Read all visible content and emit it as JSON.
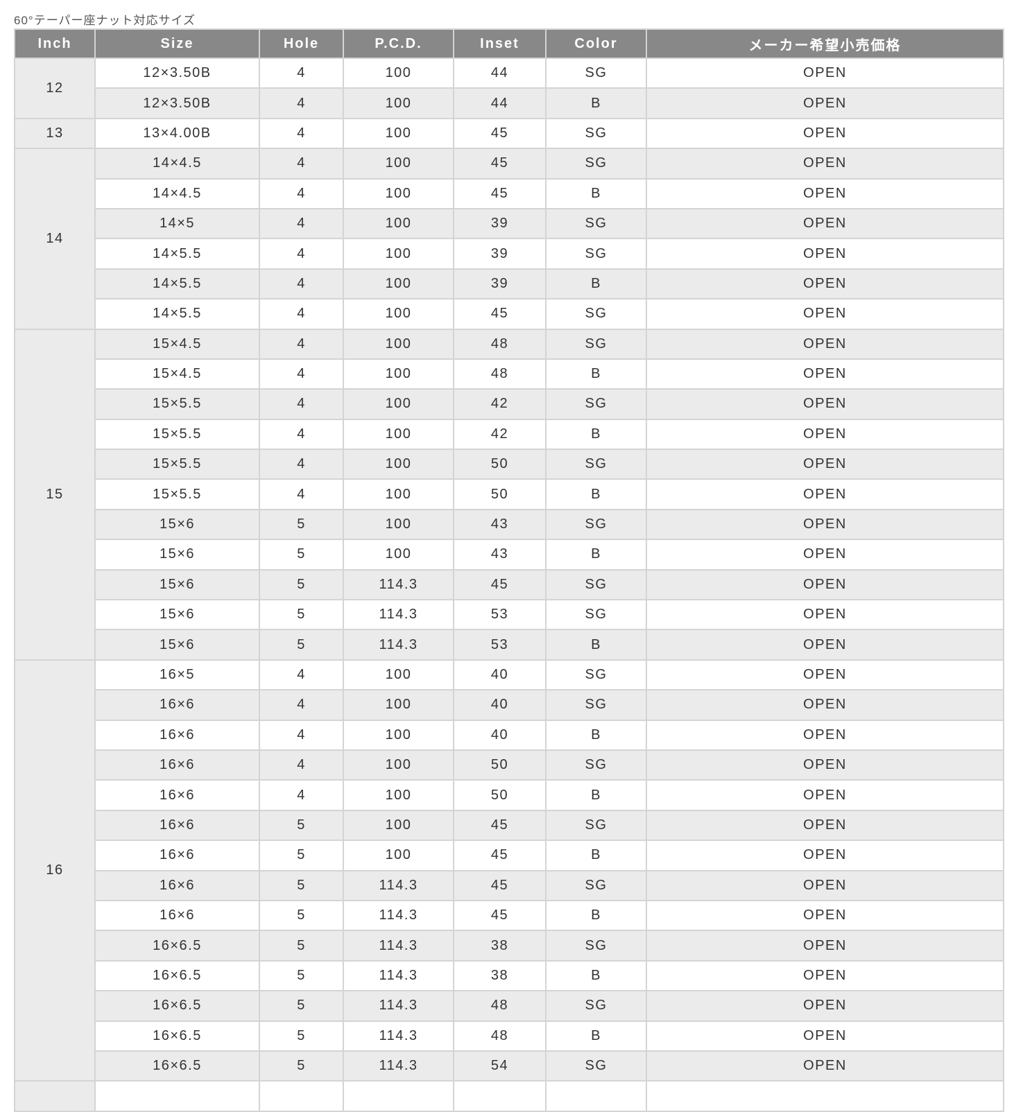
{
  "caption": "60°テーパー座ナット対応サイズ",
  "headers": [
    "Inch",
    "Size",
    "Hole",
    "P.C.D.",
    "Inset",
    "Color",
    "メーカー希望小売価格"
  ],
  "groups": [
    {
      "inch": "12",
      "rows": [
        [
          "12×3.50B",
          "4",
          "100",
          "44",
          "SG",
          "OPEN"
        ],
        [
          "12×3.50B",
          "4",
          "100",
          "44",
          "B",
          "OPEN"
        ]
      ]
    },
    {
      "inch": "13",
      "rows": [
        [
          "13×4.00B",
          "4",
          "100",
          "45",
          "SG",
          "OPEN"
        ]
      ]
    },
    {
      "inch": "14",
      "rows": [
        [
          "14×4.5",
          "4",
          "100",
          "45",
          "SG",
          "OPEN"
        ],
        [
          "14×4.5",
          "4",
          "100",
          "45",
          "B",
          "OPEN"
        ],
        [
          "14×5",
          "4",
          "100",
          "39",
          "SG",
          "OPEN"
        ],
        [
          "14×5.5",
          "4",
          "100",
          "39",
          "SG",
          "OPEN"
        ],
        [
          "14×5.5",
          "4",
          "100",
          "39",
          "B",
          "OPEN"
        ],
        [
          "14×5.5",
          "4",
          "100",
          "45",
          "SG",
          "OPEN"
        ]
      ]
    },
    {
      "inch": "15",
      "rows": [
        [
          "15×4.5",
          "4",
          "100",
          "48",
          "SG",
          "OPEN"
        ],
        [
          "15×4.5",
          "4",
          "100",
          "48",
          "B",
          "OPEN"
        ],
        [
          "15×5.5",
          "4",
          "100",
          "42",
          "SG",
          "OPEN"
        ],
        [
          "15×5.5",
          "4",
          "100",
          "42",
          "B",
          "OPEN"
        ],
        [
          "15×5.5",
          "4",
          "100",
          "50",
          "SG",
          "OPEN"
        ],
        [
          "15×5.5",
          "4",
          "100",
          "50",
          "B",
          "OPEN"
        ],
        [
          "15×6",
          "5",
          "100",
          "43",
          "SG",
          "OPEN"
        ],
        [
          "15×6",
          "5",
          "100",
          "43",
          "B",
          "OPEN"
        ],
        [
          "15×6",
          "5",
          "114.3",
          "45",
          "SG",
          "OPEN"
        ],
        [
          "15×6",
          "5",
          "114.3",
          "53",
          "SG",
          "OPEN"
        ],
        [
          "15×6",
          "5",
          "114.3",
          "53",
          "B",
          "OPEN"
        ]
      ]
    },
    {
      "inch": "16",
      "rows": [
        [
          "16×5",
          "4",
          "100",
          "40",
          "SG",
          "OPEN"
        ],
        [
          "16×6",
          "4",
          "100",
          "40",
          "SG",
          "OPEN"
        ],
        [
          "16×6",
          "4",
          "100",
          "40",
          "B",
          "OPEN"
        ],
        [
          "16×6",
          "4",
          "100",
          "50",
          "SG",
          "OPEN"
        ],
        [
          "16×6",
          "4",
          "100",
          "50",
          "B",
          "OPEN"
        ],
        [
          "16×6",
          "5",
          "100",
          "45",
          "SG",
          "OPEN"
        ],
        [
          "16×6",
          "5",
          "100",
          "45",
          "B",
          "OPEN"
        ],
        [
          "16×6",
          "5",
          "114.3",
          "45",
          "SG",
          "OPEN"
        ],
        [
          "16×6",
          "5",
          "114.3",
          "45",
          "B",
          "OPEN"
        ],
        [
          "16×6.5",
          "5",
          "114.3",
          "38",
          "SG",
          "OPEN"
        ],
        [
          "16×6.5",
          "5",
          "114.3",
          "38",
          "B",
          "OPEN"
        ],
        [
          "16×6.5",
          "5",
          "114.3",
          "48",
          "SG",
          "OPEN"
        ],
        [
          "16×6.5",
          "5",
          "114.3",
          "48",
          "B",
          "OPEN"
        ],
        [
          "16×6.5",
          "5",
          "114.3",
          "54",
          "SG",
          "OPEN"
        ]
      ]
    }
  ]
}
